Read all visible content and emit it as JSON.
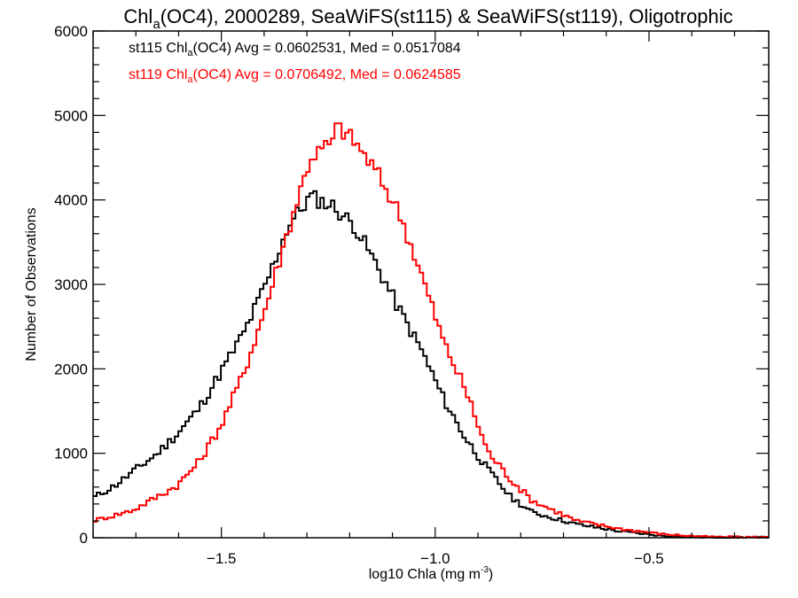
{
  "chart_data": {
    "type": "line",
    "style": "histogram-step",
    "title": {
      "prefix": "Chl",
      "subscript": "a",
      "suffix": "(OC4), 2000289, SeaWiFS(st115) & SeaWiFS(st119), Oligotrophic"
    },
    "xlabel": {
      "main": "log10 Chla (mg m",
      "superscript": "-3",
      "close": ")"
    },
    "ylabel": "Number of Observations",
    "xlim": [
      -1.8,
      -0.22
    ],
    "ylim": [
      0,
      6000
    ],
    "x_major_ticks": [
      -1.5,
      -1.0,
      -0.5
    ],
    "x_tick_labels": [
      "−1.5",
      "−1.0",
      "−0.5"
    ],
    "x_minor_step": 0.1,
    "y_major_ticks": [
      0,
      1000,
      2000,
      3000,
      4000,
      5000,
      6000
    ],
    "y_tick_labels": [
      "0",
      "1000",
      "2000",
      "3000",
      "4000",
      "5000",
      "6000"
    ],
    "y_minor_step": 200,
    "grid": false,
    "legend_placement": "top-left",
    "bin_width": 0.0083,
    "series": [
      {
        "name": "st115",
        "color": "#000000",
        "legend": {
          "prefix": "st115 Chl",
          "subscript": "a",
          "suffix": "(OC4) Avg = 0.0602531, Med = 0.0517084"
        },
        "profile_x": [
          -1.8,
          -1.748,
          -1.707,
          -1.655,
          -1.603,
          -1.551,
          -1.499,
          -1.447,
          -1.395,
          -1.344,
          -1.292,
          -1.24,
          -1.188,
          -1.136,
          -1.084,
          -1.032,
          -0.981,
          -0.929,
          -0.877,
          -0.825,
          -0.773,
          -0.669,
          -0.566,
          -0.462,
          -0.36,
          -0.22
        ],
        "profile_y": [
          470,
          620,
          780,
          975,
          1230,
          1540,
          1980,
          2430,
          3010,
          3690,
          4040,
          3930,
          3690,
          3220,
          2700,
          2220,
          1650,
          1175,
          810,
          490,
          300,
          160,
          75,
          20,
          6,
          3
        ]
      },
      {
        "name": "st119",
        "color": "#ff0000",
        "legend": {
          "prefix": "st119 Chl",
          "subscript": "a",
          "suffix": "(OC4) Avg = 0.0706492, Med = 0.0624585"
        },
        "profile_x": [
          -1.8,
          -1.707,
          -1.603,
          -1.551,
          -1.499,
          -1.447,
          -1.395,
          -1.344,
          -1.292,
          -1.24,
          -1.229,
          -1.188,
          -1.136,
          -1.084,
          -1.032,
          -0.981,
          -0.929,
          -0.877,
          -0.825,
          -0.773,
          -0.669,
          -0.566,
          -0.462,
          -0.36,
          -0.22
        ],
        "profile_y": [
          200,
          325,
          620,
          910,
          1350,
          1960,
          2750,
          3640,
          4500,
          4690,
          4880,
          4690,
          4320,
          3850,
          3115,
          2330,
          1750,
          1020,
          700,
          440,
          200,
          105,
          40,
          10,
          5
        ]
      }
    ]
  }
}
